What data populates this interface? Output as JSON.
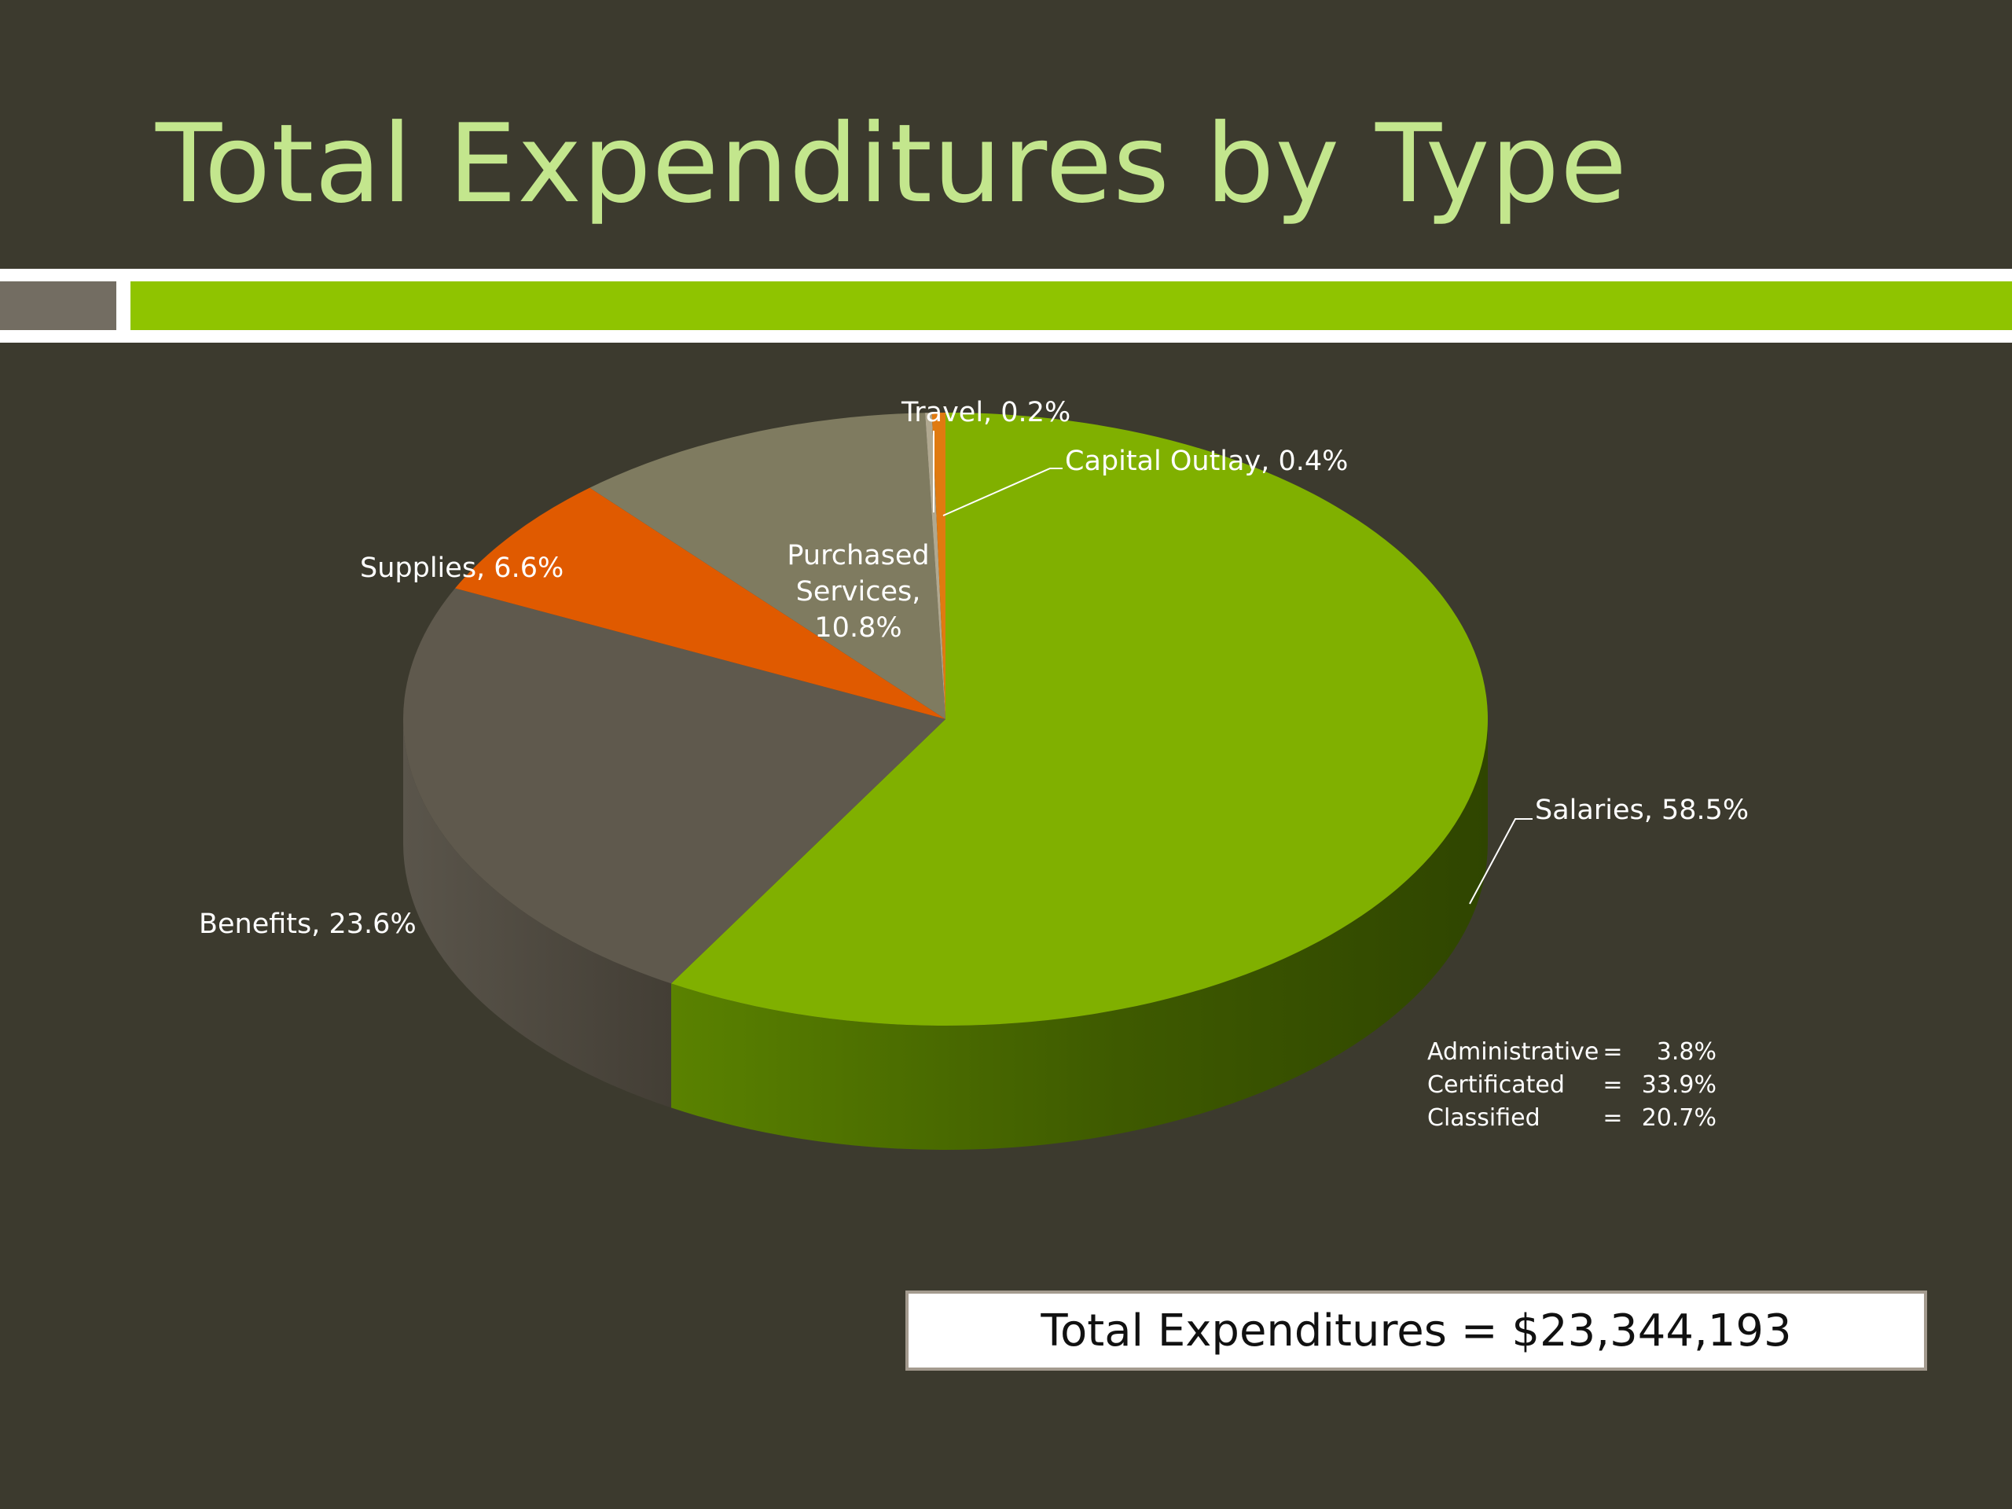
{
  "slide": {
    "title": "Total Expenditures by Type",
    "total_label": "Total Expenditures = $23,344,193"
  },
  "chart_data": {
    "type": "pie",
    "title": "",
    "style": "3d",
    "slices": [
      {
        "label": "Salaries",
        "value": 58.5,
        "display": "Salaries, 58.5%",
        "color": "#80b000"
      },
      {
        "label": "Benefits",
        "value": 23.6,
        "display": "Benefits, 23.6%",
        "color": "#5f594d"
      },
      {
        "label": "Supplies",
        "value": 6.6,
        "display": "Supplies, 6.6%",
        "color": "#e05a00"
      },
      {
        "label": "Purchased Services",
        "value": 10.8,
        "display_lines": [
          "Purchased",
          "Services,",
          "10.8%"
        ],
        "color": "#7f7b60"
      },
      {
        "label": "Travel",
        "value": 0.2,
        "display": "Travel, 0.2%",
        "color": "#b0a890"
      },
      {
        "label": "Capital Outlay",
        "value": 0.4,
        "display": "Capital Outlay, 0.4%",
        "color": "#e07a10"
      }
    ],
    "salary_breakdown": [
      {
        "name": "Administrative",
        "sep": "=",
        "value": "3.8%"
      },
      {
        "name": "Certificated",
        "sep": "=",
        "value": "33.9%"
      },
      {
        "name": "Classified",
        "sep": "=",
        "value": "20.7%"
      }
    ]
  }
}
